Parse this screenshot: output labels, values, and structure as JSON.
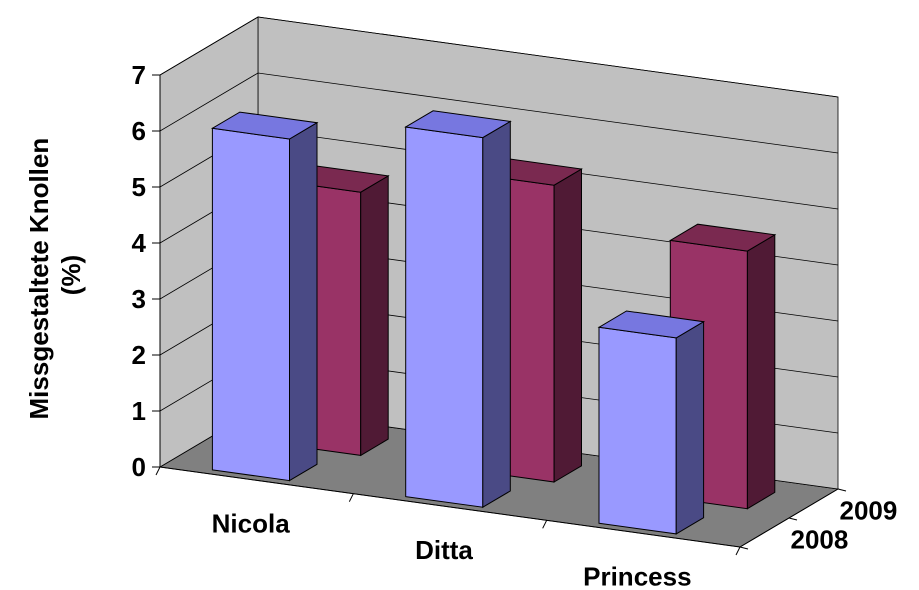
{
  "chart_data": {
    "type": "bar",
    "subtype": "3d-column",
    "categories": [
      "Nicola",
      "Ditta",
      "Princess"
    ],
    "series": [
      {
        "name": "2008",
        "values": [
          6.1,
          6.6,
          3.5
        ]
      },
      {
        "name": "2009",
        "values": [
          4.7,
          5.3,
          4.6
        ]
      }
    ],
    "ylabel": "Missgestaltete Knollen (%)",
    "ylabel_lines": [
      "Missgestaltete Knollen",
      "(%)"
    ],
    "xlabel": "",
    "ylim": [
      0,
      7
    ],
    "yticks": [
      "0",
      "1",
      "2",
      "3",
      "4",
      "5",
      "6",
      "7"
    ],
    "grid": true,
    "legend": "none",
    "colors": {
      "2008": {
        "front": "#9999ff",
        "top": "#7777e0",
        "side": "#4a4a85"
      },
      "2009": {
        "front": "#993366",
        "top": "#7a2950",
        "side": "#501a35"
      },
      "back_wall": "#c0c0c0",
      "side_wall": "#c0c0c0",
      "floor": "#808080",
      "gridline": "#000000"
    }
  }
}
